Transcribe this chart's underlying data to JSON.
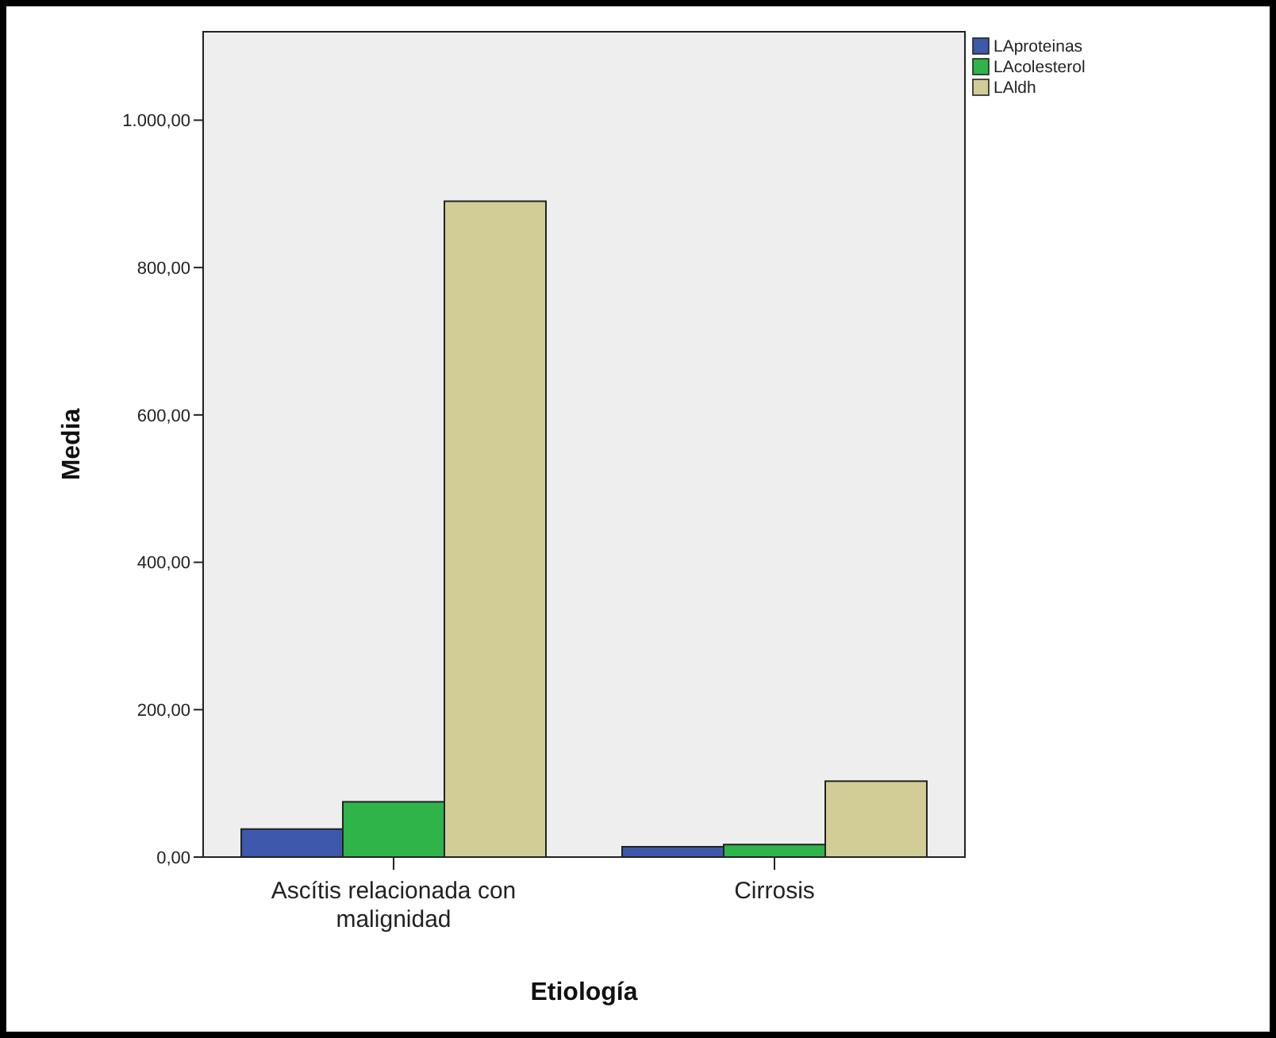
{
  "chart_data": {
    "type": "bar",
    "xlabel": "Etiología",
    "ylabel": "Media",
    "categories": [
      "Ascítis relacionada con malignidad",
      "Cirrosis"
    ],
    "series": [
      {
        "name": "LAproteinas",
        "color": "#3e58ac",
        "values": [
          38,
          14
        ]
      },
      {
        "name": "LAcolesterol",
        "color": "#2fb44a",
        "values": [
          75,
          17
        ]
      },
      {
        "name": "LAldh",
        "color": "#d2cd96",
        "values": [
          890,
          103
        ]
      }
    ],
    "ylim": [
      0,
      1120
    ],
    "yticks": [
      {
        "value": 0,
        "label": "0,00"
      },
      {
        "value": 200,
        "label": "200,00"
      },
      {
        "value": 400,
        "label": "400,00"
      },
      {
        "value": 600,
        "label": "600,00"
      },
      {
        "value": 800,
        "label": "800,00"
      },
      {
        "value": 1000,
        "label": "1.000,00"
      }
    ],
    "grid": false,
    "legend": "top right"
  }
}
